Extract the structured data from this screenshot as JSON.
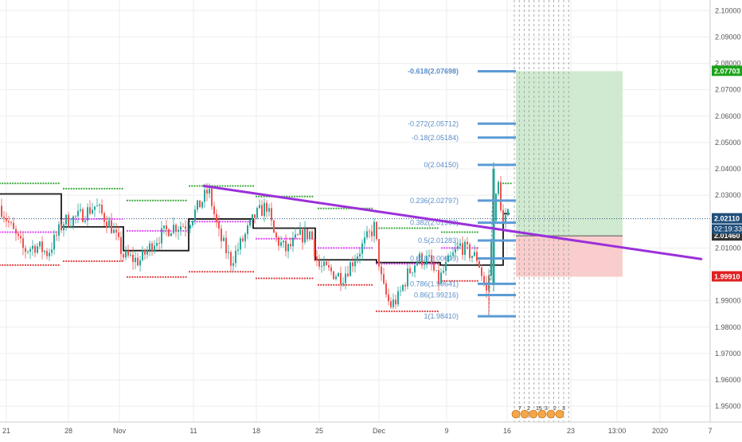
{
  "chart_data": {
    "type": "candlestick",
    "title": "",
    "xlabel": "",
    "ylabel": "",
    "ylim": [
      1.944,
      2.104
    ],
    "grid": true,
    "y_ticks": [
      {
        "value": 2.1,
        "label": "2.10000"
      },
      {
        "value": 2.09,
        "label": "2.09000"
      },
      {
        "value": 2.08,
        "label": "2.08000"
      },
      {
        "value": 2.07,
        "label": "2.07000"
      },
      {
        "value": 2.06,
        "label": "2.06000"
      },
      {
        "value": 2.05,
        "label": "2.05000"
      },
      {
        "value": 2.04,
        "label": "2.04000"
      },
      {
        "value": 2.03,
        "label": "2.03000"
      },
      {
        "value": 2.01,
        "label": "2.01000"
      },
      {
        "value": 1.99,
        "label": "1.99000"
      },
      {
        "value": 1.98,
        "label": "1.98000"
      },
      {
        "value": 1.97,
        "label": "1.97000"
      },
      {
        "value": 1.96,
        "label": "1.96000"
      },
      {
        "value": 1.95,
        "label": "1.95000"
      }
    ],
    "x_ticks": [
      "21",
      "28",
      "Nov",
      "11",
      "18",
      "25",
      "Dec",
      "9",
      "16",
      "23",
      "13:00",
      "2020",
      "7"
    ],
    "price_labels": [
      {
        "value": 2.07703,
        "label": "2.07703",
        "color": "#1aa31a"
      },
      {
        "value": 2.0211,
        "label": "2.02110",
        "color": "#1f4e79"
      },
      {
        "value": 2.0146,
        "label": "2.01460",
        "color": "#333333"
      },
      {
        "value": 1.9991,
        "label": "1.99910",
        "color": "#e02020"
      }
    ],
    "countdown": "02:19:33",
    "fib_levels": [
      {
        "ratio": "-0.618",
        "price": 2.07698,
        "label": "-0.618(2.07698)"
      },
      {
        "ratio": "-0.272",
        "price": 2.05712,
        "label": "-0.272(2.05712)"
      },
      {
        "ratio": "-0.18",
        "price": 2.05184,
        "label": "-0.18(2.05184)"
      },
      {
        "ratio": "0",
        "price": 2.0415,
        "label": "0(2.04150)"
      },
      {
        "ratio": "0.236",
        "price": 2.02797,
        "label": "0.236(2.02797)"
      },
      {
        "ratio": "0.382",
        "price": 2.0196,
        "label": "0.382(2.01960)"
      },
      {
        "ratio": "0.5",
        "price": 2.01283,
        "label": "0.5(2.01283)"
      },
      {
        "ratio": "0.618",
        "price": 2.00605,
        "label": "0.618(2.00605)"
      },
      {
        "ratio": "0.786",
        "price": 1.99641,
        "label": "0.786(1.99641)"
      },
      {
        "ratio": "0.86",
        "price": 1.99216,
        "label": "0.86(1.99216)"
      },
      {
        "ratio": "1",
        "price": 1.9841,
        "label": "1(1.98410)"
      }
    ],
    "trendline": {
      "x": [
        0.275,
        0.945
      ],
      "y": [
        2.0335,
        2.0058
      ],
      "color": "#9b30d9"
    },
    "position_tool": {
      "entry": 2.0146,
      "target": 2.07703,
      "stop": 1.9991,
      "profit_color": "#c8e6c9",
      "loss_color": "#f8c8c8"
    },
    "series": [
      {
        "name": "",
        "color": "#26a69a",
        "description": "up candles"
      },
      {
        "name": "",
        "color": "#ef5350",
        "description": "down candles"
      }
    ],
    "event_badges": [
      "7",
      "2",
      "15",
      "3",
      "2",
      "3"
    ],
    "colors": {
      "up": "#26a69a",
      "down": "#ef5350",
      "resistance_dots": "#3aa83a",
      "support_dots": "#e03a3a",
      "pivot_dots": "#e040fb",
      "fib": "#5b9bd5",
      "step": "#1a1a1a",
      "grid": "#eeeeee"
    }
  }
}
